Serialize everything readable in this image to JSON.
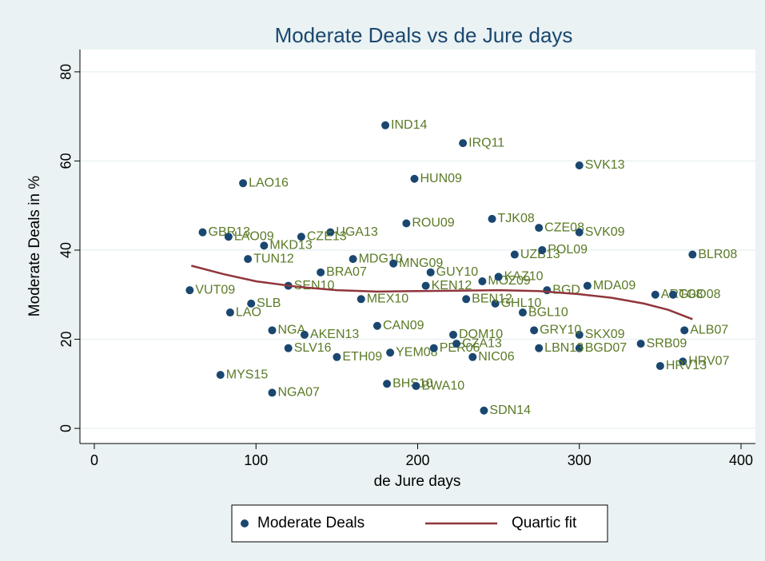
{
  "chart_data": {
    "type": "scatter",
    "title": "Moderate Deals vs de Jure days",
    "x_label": "de Jure days",
    "y_label": "Moderate Deals in %",
    "xlim": [
      -8.9,
      408.9
    ],
    "xticks": [
      0,
      100,
      200,
      300,
      400
    ],
    "ylim": [
      -3.4,
      85
    ],
    "yticks": [
      0,
      20,
      40,
      60,
      80
    ],
    "grid": true,
    "legend": "bottom",
    "series": [
      {
        "name": "Moderate Deals",
        "type": "scatter",
        "color": "#1a476f",
        "label_color": "#5a7a26",
        "x": [
          180,
          228,
          300,
          198,
          92,
          193,
          246,
          275,
          300,
          67,
          83,
          146,
          128,
          105,
          370,
          95,
          260,
          277,
          59,
          305,
          347,
          358,
          280,
          240,
          78,
          110,
          241,
          181,
          199,
          120,
          234,
          364,
          350,
          338,
          300,
          275,
          365,
          300,
          110,
          130,
          84,
          97,
          222,
          208,
          150,
          183,
          210,
          224,
          248,
          265,
          272,
          160,
          140,
          185,
          205,
          120,
          165,
          175,
          250,
          230
        ],
        "values": [
          68,
          64,
          59,
          56,
          55,
          46,
          47,
          45,
          44,
          44,
          43,
          44,
          43,
          41,
          39,
          38,
          39,
          40,
          31,
          32,
          30,
          30,
          31,
          33,
          12,
          8,
          4,
          10,
          9.5,
          18,
          16,
          15,
          14,
          19,
          18,
          18,
          22,
          21,
          22,
          21,
          26,
          28,
          21,
          35,
          16,
          17,
          18,
          19,
          28,
          26,
          22,
          38,
          35,
          37,
          32,
          32,
          29,
          23,
          34,
          29
        ],
        "labels": [
          "IND14",
          "IRQ11",
          "SVK13",
          "HUN09",
          "LAO16",
          "ROU09",
          "TJK08",
          "CZE08",
          "SVK09",
          "GBR13",
          "LAO09",
          "UGA13",
          "CZE13",
          "MKD13",
          "BLR08",
          "TUN12",
          "UZB13",
          "POL09",
          "VUT09",
          "MDA09",
          "ARG08",
          "TGO08",
          "BGD",
          "MOZ09",
          "MYS15",
          "NGA07",
          "SDN14",
          "BHS10",
          "BWA10",
          "SLV16",
          "NIC06",
          "HRV07",
          "HRV13",
          "SRB09",
          "BGD07",
          "LBN13",
          "ALB07",
          "SKX09",
          "NGA",
          "AKEN13",
          "LAO",
          "SLB",
          "DOM10",
          "GUY10",
          "ETH09",
          "YEM08",
          "PER06",
          "CZA13",
          "GHL10",
          "BGL10",
          "GRY10",
          "MDG10",
          "BRA07",
          "MNG09",
          "KEN12",
          "SEN10",
          "MEX10",
          "CAN09",
          "KAZ10",
          "BEN12"
        ]
      },
      {
        "name": "Quartic fit",
        "type": "line",
        "color": "#90353b",
        "x": [
          60,
          80,
          100,
          125,
          150,
          175,
          200,
          225,
          250,
          275,
          300,
          320,
          340,
          355,
          370
        ],
        "values": [
          36.5,
          34.6,
          33.0,
          31.8,
          31.0,
          30.7,
          30.8,
          30.9,
          31.0,
          30.8,
          30.1,
          29.3,
          28.0,
          26.6,
          24.5
        ]
      }
    ]
  }
}
